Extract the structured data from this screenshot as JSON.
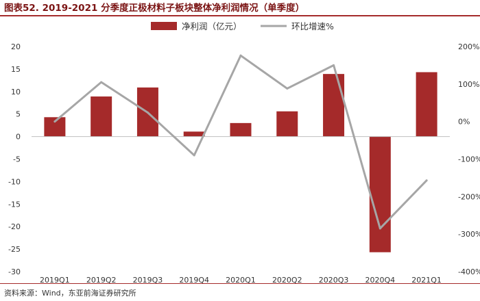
{
  "title": "图表52. 2019-2021 分季度正极材料子板块整体净利润情况（单季度）",
  "source": "资料来源：Wind，东亚前海证券研究所",
  "colors": {
    "bar": "#a52a2a",
    "line": "#a6a6a6",
    "accent": "#7b1414"
  },
  "chart_data": {
    "type": "bar",
    "categories": [
      "2019Q1",
      "2019Q2",
      "2019Q3",
      "2019Q4",
      "2020Q1",
      "2020Q2",
      "2020Q3",
      "2020Q4",
      "2021Q1"
    ],
    "series": [
      {
        "name": "净利润（亿元）",
        "type": "bar",
        "axis": "left",
        "values": [
          4.3,
          8.9,
          10.9,
          1.1,
          3.0,
          5.6,
          13.9,
          -25.7,
          14.3
        ]
      },
      {
        "name": "环比增速%",
        "type": "line",
        "axis": "right",
        "values": [
          0,
          105,
          24,
          -90,
          176,
          88,
          150,
          -285,
          -157
        ]
      }
    ],
    "left_axis": {
      "ylim": [
        -30,
        20
      ],
      "ticks": [
        "20",
        "15",
        "10",
        "5",
        "0",
        "-5",
        "-10",
        "-15",
        "-20",
        "-25",
        "-30"
      ]
    },
    "right_axis": {
      "ylim": [
        -400,
        200
      ],
      "ticks": [
        "200%",
        "100%",
        "0%",
        "-100%",
        "-200%",
        "-300%",
        "-400%"
      ]
    },
    "legend_position": "top-center",
    "grid": false
  }
}
